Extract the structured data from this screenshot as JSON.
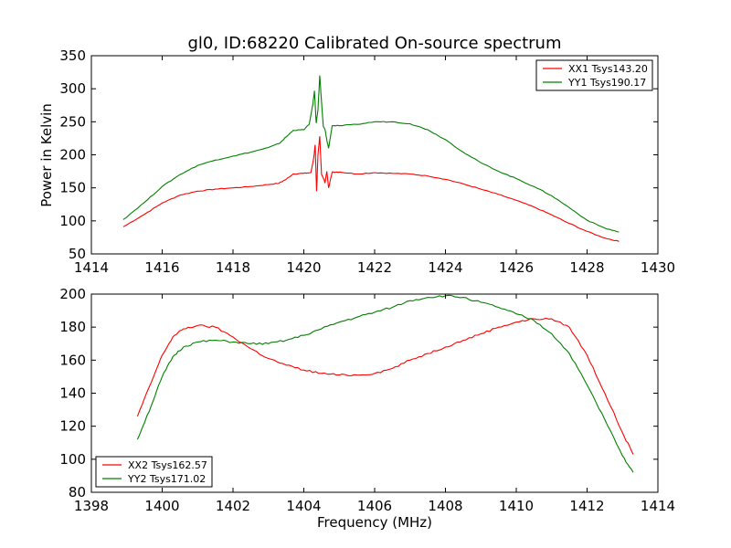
{
  "figure": {
    "title": "gl0, ID:68220 Calibrated On-source spectrum",
    "xlabel": "Frequency (MHz)",
    "ylabel": "Power in Kelvin"
  },
  "chart_data": [
    {
      "type": "line",
      "xlim": [
        1414,
        1430
      ],
      "ylim": [
        50,
        350
      ],
      "xticks": [
        1414,
        1416,
        1418,
        1420,
        1422,
        1424,
        1426,
        1428,
        1430
      ],
      "yticks": [
        50,
        100,
        150,
        200,
        250,
        300,
        350
      ],
      "grid": false,
      "legend": "top-right",
      "series": [
        {
          "name": "XX1 Tsys143.20",
          "color": "#ff0000",
          "x": [
            1414.9,
            1415.5,
            1416.0,
            1416.5,
            1417.0,
            1417.5,
            1418.0,
            1418.5,
            1419.0,
            1419.3,
            1419.5,
            1419.7,
            1420.0,
            1420.2,
            1420.28,
            1420.32,
            1420.36,
            1420.4,
            1420.45,
            1420.5,
            1420.55,
            1420.6,
            1420.65,
            1420.7,
            1420.8,
            1421.0,
            1421.5,
            1422.0,
            1422.5,
            1423.0,
            1423.5,
            1424.0,
            1424.5,
            1425.0,
            1425.5,
            1426.0,
            1426.5,
            1427.0,
            1427.5,
            1428.0,
            1428.5,
            1428.9
          ],
          "y": [
            91,
            110,
            127,
            139,
            145,
            148,
            150,
            152,
            155,
            157,
            163,
            171,
            172,
            173,
            195,
            215,
            145,
            200,
            228,
            170,
            165,
            158,
            175,
            150,
            174,
            174,
            171,
            173,
            172,
            171,
            168,
            163,
            156,
            148,
            140,
            131,
            121,
            109,
            96,
            84,
            74,
            69
          ]
        },
        {
          "name": "YY1 Tsys190.17",
          "color": "#008000",
          "x": [
            1414.9,
            1415.5,
            1416.0,
            1416.5,
            1417.0,
            1417.5,
            1418.0,
            1418.5,
            1419.0,
            1419.3,
            1419.5,
            1419.7,
            1420.0,
            1420.15,
            1420.25,
            1420.3,
            1420.35,
            1420.4,
            1420.45,
            1420.5,
            1420.55,
            1420.6,
            1420.65,
            1420.7,
            1420.8,
            1421.0,
            1421.5,
            1422.0,
            1422.5,
            1423.0,
            1423.5,
            1424.0,
            1424.5,
            1425.0,
            1425.5,
            1426.0,
            1426.5,
            1427.0,
            1427.5,
            1428.0,
            1428.5,
            1428.9
          ],
          "y": [
            102,
            128,
            152,
            170,
            184,
            192,
            198,
            204,
            211,
            217,
            227,
            237,
            238,
            246,
            275,
            297,
            248,
            268,
            320,
            280,
            243,
            238,
            222,
            210,
            244,
            244,
            246,
            250,
            250,
            247,
            238,
            223,
            204,
            188,
            175,
            164,
            152,
            138,
            120,
            101,
            89,
            83
          ]
        }
      ]
    },
    {
      "type": "line",
      "xlim": [
        1398,
        1414
      ],
      "ylim": [
        80,
        200
      ],
      "xticks": [
        1398,
        1400,
        1402,
        1404,
        1406,
        1408,
        1410,
        1412,
        1414
      ],
      "yticks": [
        80,
        100,
        120,
        140,
        160,
        180,
        200
      ],
      "grid": false,
      "legend": "bottom-left",
      "series": [
        {
          "name": "XX2 Tsys162.57",
          "color": "#ff0000",
          "x": [
            1399.3,
            1399.7,
            1400.0,
            1400.3,
            1400.6,
            1401.0,
            1401.5,
            1402.0,
            1402.5,
            1403.0,
            1403.5,
            1404.0,
            1404.5,
            1405.0,
            1405.5,
            1406.0,
            1406.5,
            1407.0,
            1407.5,
            1408.0,
            1408.5,
            1409.0,
            1409.5,
            1410.0,
            1410.5,
            1411.0,
            1411.5,
            1412.0,
            1412.5,
            1413.0,
            1413.3
          ],
          "y": [
            126,
            147,
            163,
            174,
            179,
            181,
            180,
            174,
            167,
            161,
            157,
            154,
            152,
            151,
            151,
            152,
            155,
            160,
            164,
            168,
            172,
            176,
            180,
            183,
            185,
            185,
            180,
            163,
            140,
            116,
            103
          ]
        },
        {
          "name": "YY2 Tsys171.02",
          "color": "#008000",
          "x": [
            1399.3,
            1399.7,
            1400.0,
            1400.3,
            1400.6,
            1401.0,
            1401.5,
            1402.0,
            1402.5,
            1403.0,
            1403.5,
            1404.0,
            1404.5,
            1405.0,
            1405.5,
            1406.0,
            1406.5,
            1407.0,
            1407.5,
            1408.0,
            1408.5,
            1409.0,
            1409.5,
            1410.0,
            1410.5,
            1411.0,
            1411.5,
            1412.0,
            1412.5,
            1413.0,
            1413.3
          ],
          "y": [
            112,
            133,
            150,
            162,
            168,
            171,
            172,
            171,
            170,
            170,
            172,
            175,
            179,
            183,
            186,
            189,
            192,
            196,
            198,
            199,
            198,
            195,
            192,
            188,
            184,
            176,
            164,
            145,
            124,
            102,
            92
          ]
        }
      ]
    }
  ]
}
